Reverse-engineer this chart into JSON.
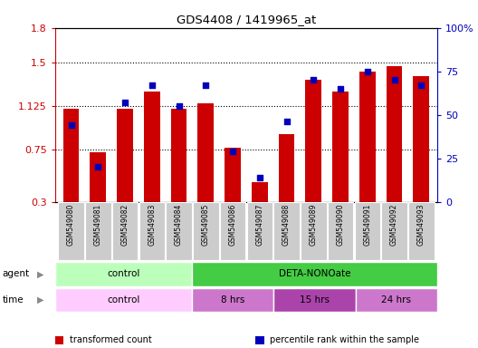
{
  "title": "GDS4408 / 1419965_at",
  "samples": [
    "GSM549080",
    "GSM549081",
    "GSM549082",
    "GSM549083",
    "GSM549084",
    "GSM549085",
    "GSM549086",
    "GSM549087",
    "GSM549088",
    "GSM549089",
    "GSM549090",
    "GSM549091",
    "GSM549092",
    "GSM549093"
  ],
  "transformed_count": [
    1.1,
    0.73,
    1.1,
    1.25,
    1.1,
    1.15,
    0.77,
    0.47,
    0.88,
    1.35,
    1.25,
    1.42,
    1.47,
    1.38
  ],
  "percentile_rank": [
    44,
    20,
    57,
    67,
    55,
    67,
    29,
    14,
    46,
    70,
    65,
    75,
    70,
    67
  ],
  "ylim_left": [
    0.3,
    1.8
  ],
  "ylim_right": [
    0,
    100
  ],
  "yticks_left": [
    0.3,
    0.75,
    1.125,
    1.5,
    1.8
  ],
  "yticks_right": [
    0,
    25,
    50,
    75,
    100
  ],
  "bar_color": "#cc0000",
  "dot_color": "#0000bb",
  "agent_groups": [
    {
      "label": "control",
      "start": 0,
      "end": 5,
      "color": "#bbffbb"
    },
    {
      "label": "DETA-NONOate",
      "start": 5,
      "end": 14,
      "color": "#44cc44"
    }
  ],
  "time_groups": [
    {
      "label": "control",
      "start": 0,
      "end": 5,
      "color": "#ffbbff"
    },
    {
      "label": "8 hrs",
      "start": 5,
      "end": 8,
      "color": "#cc66cc"
    },
    {
      "label": "15 hrs",
      "start": 8,
      "end": 11,
      "color": "#aa44aa"
    },
    {
      "label": "24 hrs",
      "start": 11,
      "end": 14,
      "color": "#cc66cc"
    }
  ],
  "legend_items": [
    {
      "label": "transformed count",
      "color": "#cc0000"
    },
    {
      "label": "percentile rank within the sample",
      "color": "#0000bb"
    }
  ],
  "tick_color_left": "#cc0000",
  "tick_color_right": "#0000bb",
  "bar_width": 0.6,
  "xticklabel_bg": "#cccccc",
  "fig_bg": "#ffffff"
}
